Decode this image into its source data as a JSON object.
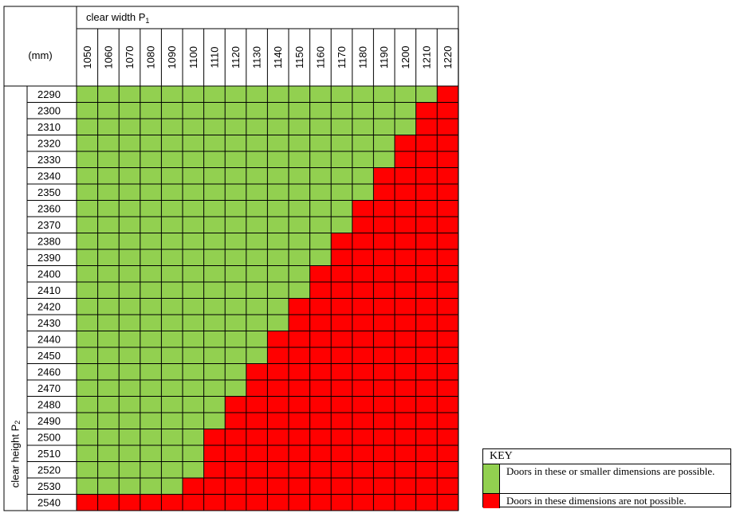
{
  "table": {
    "corner_label": "(mm)",
    "width_header": "clear width P",
    "width_sub": "1",
    "height_header": "clear height P",
    "height_sub": "2",
    "widths": [
      "1050",
      "1060",
      "1070",
      "1080",
      "1090",
      "1100",
      "1110",
      "1120",
      "1130",
      "1140",
      "1150",
      "1160",
      "1170",
      "1180",
      "1190",
      "1200",
      "1210",
      "1220"
    ],
    "heights": [
      "2290",
      "2300",
      "2310",
      "2320",
      "2330",
      "2340",
      "2350",
      "2360",
      "2370",
      "2380",
      "2390",
      "2400",
      "2410",
      "2420",
      "2430",
      "2440",
      "2450",
      "2460",
      "2470",
      "2480",
      "2490",
      "2500",
      "2510",
      "2520",
      "2530",
      "2540"
    ],
    "possible_counts": [
      17,
      16,
      16,
      15,
      15,
      14,
      14,
      13,
      13,
      12,
      12,
      11,
      11,
      10,
      10,
      9,
      9,
      8,
      8,
      7,
      7,
      6,
      6,
      6,
      5,
      0
    ]
  },
  "colors": {
    "possible": "#92d050",
    "not_possible": "#ff0000"
  },
  "key": {
    "title": "KEY",
    "possible_text": "Doors in these or smaller dimensions are possible.",
    "not_possible_text": "Doors in these dimensions are not possible."
  }
}
